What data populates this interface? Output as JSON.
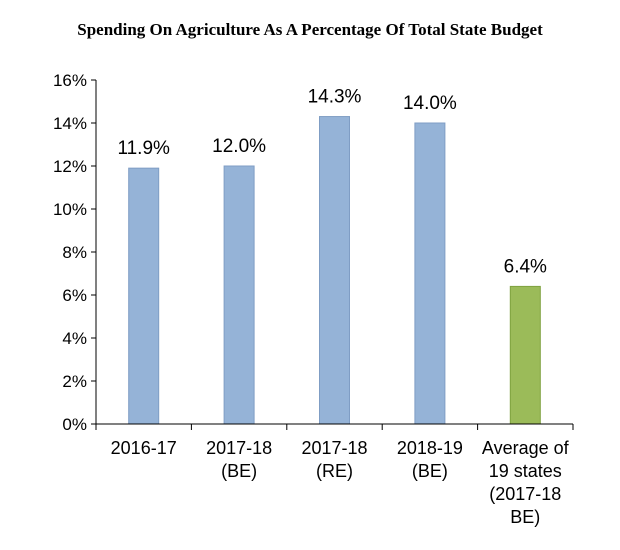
{
  "chart_data": {
    "type": "bar",
    "title": "Spending On Agriculture As A Percentage Of Total State Budget",
    "xlabel": "",
    "ylabel": "",
    "ylim": [
      0,
      16
    ],
    "yticks": [
      "0%",
      "2%",
      "4%",
      "6%",
      "8%",
      "10%",
      "12%",
      "14%",
      "16%"
    ],
    "ytick_values": [
      0,
      2,
      4,
      6,
      8,
      10,
      12,
      14,
      16
    ],
    "categories": [
      [
        "2016-17"
      ],
      [
        "2017-18",
        "(BE)"
      ],
      [
        "2017-18",
        "(RE)"
      ],
      [
        "2018-19",
        "(BE)"
      ],
      [
        "Average of",
        "19 states",
        "(2017-18",
        "BE)"
      ]
    ],
    "values": [
      11.9,
      12.0,
      14.3,
      14.0,
      6.4
    ],
    "data_labels": [
      "11.9%",
      "12.0%",
      "14.3%",
      "14.0%",
      "6.4%"
    ],
    "bar_colors": [
      "#95b3d7",
      "#95b3d7",
      "#95b3d7",
      "#95b3d7",
      "#9bbb59"
    ],
    "bar_edge_colors": [
      "#7f9dc4",
      "#7f9dc4",
      "#7f9dc4",
      "#7f9dc4",
      "#7fa23f"
    ],
    "grid": false,
    "legend": "none"
  }
}
